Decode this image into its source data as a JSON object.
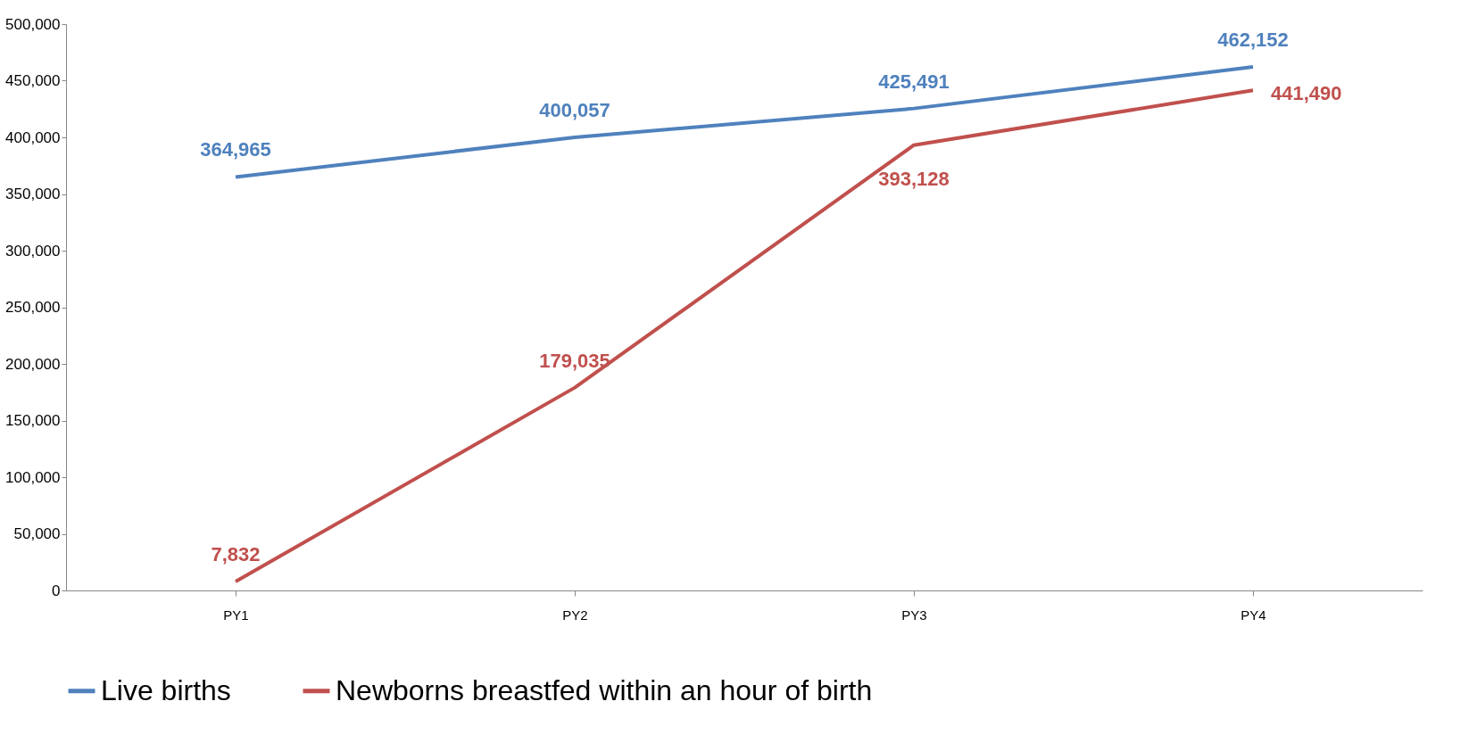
{
  "chart_data": {
    "type": "line",
    "categories": [
      "PY1",
      "PY2",
      "PY3",
      "PY4"
    ],
    "series": [
      {
        "name": "Live births",
        "color": "#4f81bd",
        "values": [
          364965,
          400057,
          425491,
          462152
        ],
        "value_labels": [
          "364,965",
          "400,057",
          "425,491",
          "462,152"
        ]
      },
      {
        "name": "Newborns breastfed within an hour of birth",
        "color": "#c0504d",
        "values": [
          7832,
          179035,
          393128,
          441490
        ],
        "value_labels": [
          "7,832",
          "179,035",
          "393,128",
          "441,490"
        ]
      }
    ],
    "ylim": [
      0,
      500000
    ],
    "yticks": [
      0,
      {
        "value": 50000,
        "label": "50,000"
      },
      {
        "value": 100000,
        "label": "100,000"
      },
      {
        "value": 150000,
        "label": "150,000"
      },
      {
        "value": 200000,
        "label": "200,000"
      },
      {
        "value": 250000,
        "label": "250,000"
      },
      {
        "value": 300000,
        "label": "300,000"
      },
      {
        "value": 350000,
        "label": "350,000"
      },
      {
        "value": 400000,
        "label": "400,000"
      },
      {
        "value": 450000,
        "label": "450,000"
      },
      {
        "value": 500000,
        "label": "500,000"
      }
    ],
    "grid": false,
    "legend": "bottom",
    "marker": "none"
  }
}
